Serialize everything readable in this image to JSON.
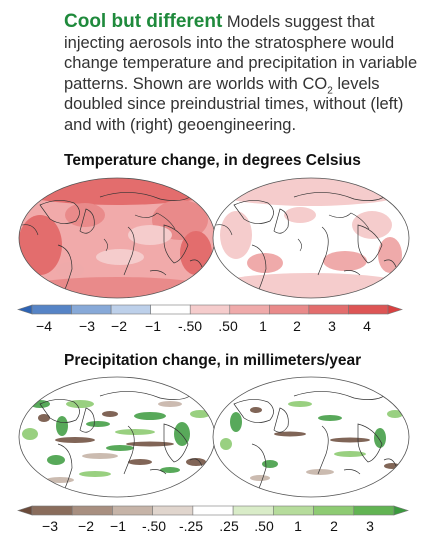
{
  "intro": {
    "headline": "Cool but different",
    "text_before_sub": " Models suggest that injecting aerosols into the stratosphere would change temperature and precipitation in variable patterns. Shown are worlds with CO",
    "subscript": "2",
    "text_after_sub": " levels doubled since preindustrial times, without (left) and with (right) geoengineering."
  },
  "temperature": {
    "title": "Temperature change, in degrees Celsius",
    "scale_labels": [
      "−4",
      "−3",
      "−2",
      "−1",
      "-.50",
      ".50",
      "1",
      "2",
      "3",
      "4"
    ],
    "colors": [
      "#2e63b3",
      "#5684c6",
      "#87a9d8",
      "#bdd0ea",
      "#ffffff",
      "#f5cccc",
      "#efaaaa",
      "#e98a8a",
      "#e36d6d",
      "#dd5555",
      "#d84040"
    ]
  },
  "precipitation": {
    "title": "Precipitation change, in millimeters/year",
    "scale_labels": [
      "−3",
      "−2",
      "−1",
      "-.50",
      "-.25",
      ".25",
      ".50",
      "1",
      "2",
      "3"
    ],
    "colors": [
      "#6b4b3a",
      "#8a6d5c",
      "#a88f80",
      "#c6b4a8",
      "#e0d5cd",
      "#ffffff",
      "#d9ecc8",
      "#b6dc9c",
      "#8ecb73",
      "#62b453",
      "#3b9a3e"
    ]
  }
}
